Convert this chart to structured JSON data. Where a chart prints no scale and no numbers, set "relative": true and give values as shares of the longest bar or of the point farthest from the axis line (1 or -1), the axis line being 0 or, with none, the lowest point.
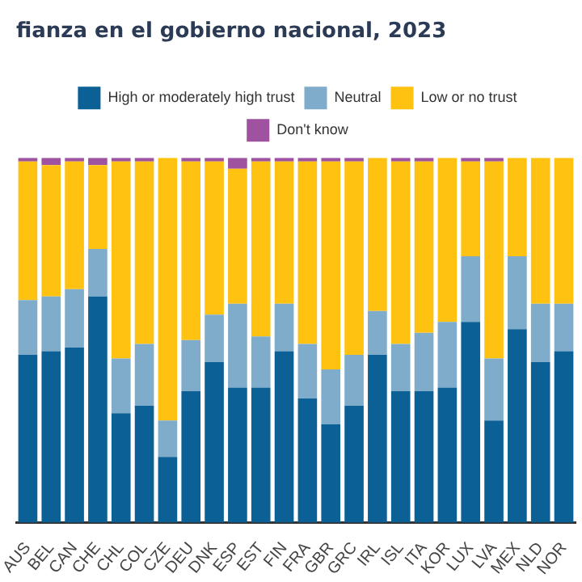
{
  "chart_data": {
    "type": "bar",
    "title": "fianza en el gobierno nacional, 2023",
    "stacked": true,
    "relative": true,
    "legend": "top",
    "categories": [
      "AUS",
      "BEL",
      "CAN",
      "CHE",
      "CHL",
      "COL",
      "CZE",
      "DEU",
      "DNK",
      "ESP",
      "EST",
      "FIN",
      "FRA",
      "GBR",
      "GRC",
      "IRL",
      "ISL",
      "ITA",
      "KOR",
      "LUX",
      "LVA",
      "MEX",
      "NLD",
      "NOR"
    ],
    "series": [
      {
        "name": "High or moderately high trust",
        "color": "#0b6096",
        "values": [
          0.46,
          0.47,
          0.48,
          0.62,
          0.3,
          0.32,
          0.18,
          0.36,
          0.44,
          0.37,
          0.37,
          0.47,
          0.34,
          0.27,
          0.32,
          0.46,
          0.36,
          0.36,
          0.37,
          0.55,
          0.28,
          0.53,
          0.44,
          0.47
        ]
      },
      {
        "name": "Neutral",
        "color": "#7eacca",
        "values": [
          0.15,
          0.15,
          0.16,
          0.13,
          0.15,
          0.17,
          0.1,
          0.14,
          0.13,
          0.23,
          0.14,
          0.13,
          0.15,
          0.15,
          0.14,
          0.12,
          0.13,
          0.16,
          0.18,
          0.18,
          0.17,
          0.2,
          0.16,
          0.13
        ]
      },
      {
        "name": "Low or no trust",
        "color": "#ffc211",
        "values": [
          0.38,
          0.36,
          0.35,
          0.23,
          0.54,
          0.5,
          0.72,
          0.49,
          0.42,
          0.37,
          0.48,
          0.39,
          0.5,
          0.57,
          0.53,
          0.42,
          0.5,
          0.47,
          0.45,
          0.26,
          0.54,
          0.27,
          0.4,
          0.4
        ]
      },
      {
        "name": "Don't know",
        "color": "#9e52a0",
        "values": [
          0.01,
          0.02,
          0.01,
          0.02,
          0.01,
          0.01,
          0.0,
          0.01,
          0.01,
          0.03,
          0.01,
          0.01,
          0.01,
          0.01,
          0.01,
          0.0,
          0.01,
          0.01,
          0.0,
          0.01,
          0.01,
          0.0,
          0.0,
          0.0
        ]
      }
    ]
  }
}
